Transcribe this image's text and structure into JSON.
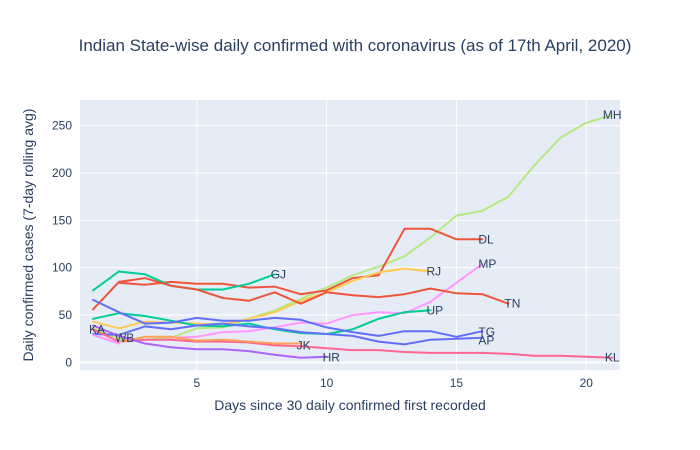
{
  "chart_data": {
    "type": "line",
    "title": "Indian State-wise daily confirmed with coronavirus (as of 17th April, 2020)",
    "xlabel": "Days since 30 daily confirmed first recorded",
    "ylabel": "Daily confirmed cases (7-day rolling avg)",
    "xlim": [
      0.5,
      21.3
    ],
    "ylim": [
      -8,
      277
    ],
    "xticks": [
      5,
      10,
      15,
      20
    ],
    "yticks": [
      0,
      50,
      100,
      150,
      200,
      250
    ],
    "grid": true,
    "background": "#e5ecf6",
    "series": [
      {
        "name": "MH",
        "color": "#b6e880",
        "x": [
          1,
          2,
          3,
          4,
          5,
          6,
          7,
          8,
          9,
          10,
          11,
          12,
          13,
          14,
          15,
          16,
          17,
          18,
          19,
          20,
          21
        ],
        "y": [
          36,
          25,
          24,
          26,
          36,
          37,
          46,
          55,
          67,
          79,
          92,
          101,
          112,
          132,
          155,
          160,
          175,
          208,
          237,
          253,
          261
        ]
      },
      {
        "name": "DL",
        "color": "#ef553b",
        "x": [
          2,
          3,
          4,
          5,
          6,
          7,
          8,
          9,
          10,
          11,
          12,
          13,
          14,
          15,
          16
        ],
        "y": [
          84,
          82,
          85,
          83,
          83,
          79,
          80,
          72,
          76,
          89,
          92,
          141,
          141,
          130,
          130
        ]
      },
      {
        "name": "MP",
        "color": "#ff97ff",
        "x": [
          4,
          5,
          6,
          7,
          8,
          9,
          10,
          11,
          12,
          13,
          14,
          15,
          16
        ],
        "y": [
          26,
          27,
          32,
          33,
          37,
          42,
          41,
          50,
          53,
          52,
          64,
          84,
          104
        ]
      },
      {
        "name": "RJ",
        "color": "#fecb52",
        "x": [
          1,
          2,
          3,
          4,
          5,
          6,
          7,
          8,
          9,
          10,
          11,
          12,
          13,
          14
        ],
        "y": [
          43,
          36,
          43,
          42,
          41,
          40,
          46,
          53,
          65,
          74,
          86,
          95,
          99,
          96
        ]
      },
      {
        "name": "GJ",
        "color": "#00cc96",
        "x": [
          1,
          2,
          3,
          4,
          5,
          6,
          7,
          8
        ],
        "y": [
          76,
          96,
          93,
          81,
          77,
          77,
          83,
          93
        ]
      },
      {
        "name": "TN",
        "color": "#ef553b",
        "x": [
          1,
          2,
          3,
          4,
          5,
          6,
          7,
          8,
          9,
          10,
          11,
          12,
          13,
          14,
          15,
          16,
          17
        ],
        "y": [
          56,
          85,
          89,
          81,
          77,
          68,
          65,
          74,
          62,
          74,
          71,
          69,
          72,
          78,
          73,
          72,
          62
        ]
      },
      {
        "name": "UP",
        "color": "#00cc96",
        "x": [
          1,
          2,
          3,
          4,
          5,
          6,
          7,
          8,
          9,
          10,
          11,
          12,
          13,
          14
        ],
        "y": [
          46,
          52,
          49,
          44,
          39,
          38,
          41,
          35,
          31,
          30,
          35,
          46,
          53,
          55
        ]
      },
      {
        "name": "TG",
        "color": "#636efa",
        "x": [
          1,
          2,
          3,
          4,
          5,
          6,
          7,
          8,
          9,
          10,
          11,
          12,
          13,
          14,
          15,
          16
        ],
        "y": [
          30,
          29,
          38,
          35,
          39,
          41,
          38,
          36,
          32,
          30,
          28,
          22,
          19,
          24,
          25,
          26
        ]
      },
      {
        "name": "AP",
        "color": "#636efa",
        "x": [
          1,
          2,
          3,
          4,
          5,
          6,
          7,
          8,
          9,
          10,
          11,
          12,
          13,
          14,
          15,
          16
        ],
        "y": [
          66,
          53,
          41,
          42,
          47,
          44,
          44,
          47,
          45,
          37,
          32,
          28,
          33,
          33,
          27,
          33
        ]
      },
      {
        "name": "KA",
        "color": "#ff6692",
        "x": [
          1,
          2,
          3,
          4,
          5,
          6,
          7,
          8,
          9,
          10,
          11,
          12,
          13,
          14,
          15,
          16,
          17,
          18,
          19,
          20,
          21
        ],
        "y": [
          35,
          22,
          24,
          24,
          22,
          22,
          21,
          18,
          17,
          15,
          13,
          13,
          11,
          10,
          10,
          10,
          9,
          7,
          7,
          6,
          5
        ]
      },
      {
        "name": "WB",
        "color": "#ff97ff",
        "x": [
          1,
          2
        ],
        "y": [
          29,
          20
        ]
      },
      {
        "name": "JK",
        "color": "#ffa15a",
        "x": [
          2,
          3,
          4,
          5,
          6,
          7,
          8,
          9
        ],
        "y": [
          22,
          27,
          27,
          23,
          24,
          22,
          20,
          20
        ]
      },
      {
        "name": "HR",
        "color": "#ab63fa",
        "x": [
          1,
          2,
          3,
          4,
          5,
          6,
          7,
          8,
          9,
          10
        ],
        "y": [
          39,
          28,
          20,
          16,
          14,
          14,
          12,
          8,
          5,
          6
        ]
      }
    ],
    "labels": [
      {
        "text": "MH",
        "x": 21,
        "y": 261
      },
      {
        "text": "DL",
        "x": 16,
        "y": 130
      },
      {
        "text": "MP",
        "x": 16,
        "y": 104
      },
      {
        "text": "RJ",
        "x": 14,
        "y": 96
      },
      {
        "text": "GJ",
        "x": 8,
        "y": 93
      },
      {
        "text": "TN",
        "x": 17,
        "y": 62
      },
      {
        "text": "UP",
        "x": 14,
        "y": 55
      },
      {
        "text": "TG",
        "x": 16,
        "y": 32
      },
      {
        "text": "AP",
        "x": 16,
        "y": 23
      },
      {
        "text": "KA",
        "x": 1,
        "y": 35
      },
      {
        "text": "WB",
        "x": 2,
        "y": 26
      },
      {
        "text": "JK",
        "x": 9,
        "y": 18
      },
      {
        "text": "HR",
        "x": 10,
        "y": 5
      },
      {
        "text": "KL",
        "x": 21,
        "y": 5
      }
    ]
  }
}
